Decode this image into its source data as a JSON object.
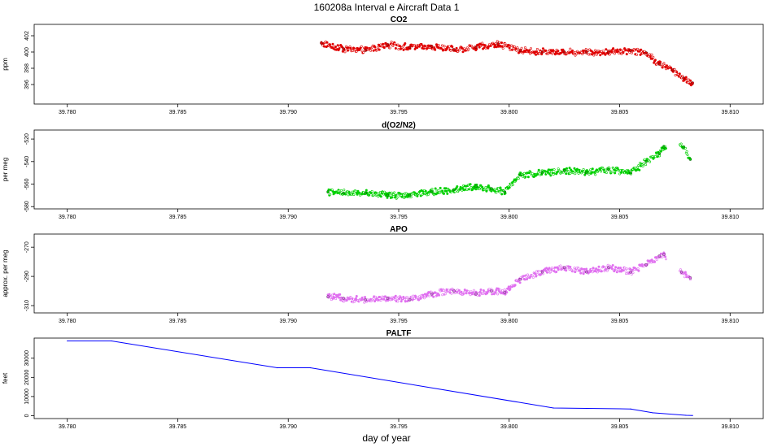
{
  "title": "160208a   Interval e Aircraft Data 1",
  "xlabel": "day of year",
  "chart_data": [
    {
      "type": "scatter",
      "title": "CO2",
      "ylabel": "ppm",
      "color": "#e00000",
      "xlim": [
        39.7785,
        39.8115
      ],
      "ylim": [
        393.6,
        403.4
      ],
      "xticks": [
        39.78,
        39.785,
        39.79,
        39.795,
        39.8,
        39.805,
        39.81
      ],
      "xtick_labels": [
        "39.780",
        "39.785",
        "39.790",
        "39.795",
        "39.800",
        "39.805",
        "39.810"
      ],
      "yticks": [
        396,
        398,
        400,
        402
      ],
      "ytick_labels": [
        "396",
        "398",
        "400",
        "402"
      ],
      "x": [
        39.7915,
        39.7925,
        39.7935,
        39.7945,
        39.7955,
        39.7965,
        39.7975,
        39.7985,
        39.7995,
        39.8005,
        39.8015,
        39.8025,
        39.8035,
        39.8045,
        39.8055,
        39.8062,
        39.8068,
        39.8074,
        39.8079,
        39.8083
      ],
      "y": [
        401.1,
        400.4,
        400.2,
        400.9,
        400.6,
        400.7,
        400.3,
        400.6,
        401.0,
        400.2,
        400.0,
        400.0,
        400.0,
        400.0,
        400.2,
        399.9,
        398.5,
        397.8,
        396.8,
        396.2
      ],
      "series": [
        {
          "name": "CO2",
          "values": [
            401.1,
            400.4,
            400.2,
            400.9,
            400.6,
            400.7,
            400.3,
            400.6,
            401.0,
            400.2,
            400.0,
            400.0,
            400.0,
            400.0,
            400.2,
            399.9,
            398.5,
            397.8,
            396.8,
            396.2
          ]
        }
      ]
    },
    {
      "type": "scatter",
      "title": "d(O2/N2)",
      "ylabel": "per meg",
      "color": "#00d000",
      "xlim": [
        39.7785,
        39.8115
      ],
      "ylim": [
        -582,
        -512
      ],
      "xticks": [
        39.78,
        39.785,
        39.79,
        39.795,
        39.8,
        39.805,
        39.81
      ],
      "xtick_labels": [
        "39.780",
        "39.785",
        "39.790",
        "39.795",
        "39.800",
        "39.805",
        "39.810"
      ],
      "yticks": [
        -580,
        -560,
        -540,
        -520
      ],
      "ytick_labels": [
        "-580",
        "-560",
        "-540",
        "-520"
      ],
      "x": [
        39.7918,
        39.7925,
        39.7935,
        39.7945,
        39.7955,
        39.7965,
        39.7975,
        39.7985,
        39.7992,
        39.7998,
        39.8005,
        39.8015,
        39.8025,
        39.8035,
        39.8045,
        39.8055,
        39.8062,
        39.8068,
        39.807,
        39.8079,
        39.8082
      ],
      "y": [
        -567,
        -568,
        -568,
        -570,
        -570,
        -567,
        -565,
        -562,
        -564,
        -567,
        -552,
        -550,
        -548,
        -550,
        -547,
        -550,
        -540,
        -533,
        -527,
        -527,
        -538
      ],
      "series": [
        {
          "name": "d(O2/N2)",
          "values": [
            -567,
            -568,
            -568,
            -570,
            -570,
            -567,
            -565,
            -562,
            -564,
            -567,
            -552,
            -550,
            -548,
            -550,
            -547,
            -550,
            -540,
            -533,
            -527,
            -527,
            -538
          ]
        }
      ]
    },
    {
      "type": "scatter",
      "title": "APO",
      "ylabel": "approx. per meg",
      "color": "#e070f0",
      "xlim": [
        39.7785,
        39.8115
      ],
      "ylim": [
        -315,
        -261
      ],
      "xticks": [
        39.78,
        39.785,
        39.79,
        39.795,
        39.8,
        39.805,
        39.81
      ],
      "xtick_labels": [
        "39.780",
        "39.785",
        "39.790",
        "39.795",
        "39.800",
        "39.805",
        "39.810"
      ],
      "yticks": [
        -310,
        -290,
        -270
      ],
      "ytick_labels": [
        "-310",
        "-290",
        "-270"
      ],
      "x": [
        39.7918,
        39.7925,
        39.7935,
        39.7945,
        39.7955,
        39.7965,
        39.7975,
        39.7985,
        39.7992,
        39.7998,
        39.8005,
        39.8015,
        39.8025,
        39.8035,
        39.8045,
        39.8055,
        39.8062,
        39.8068,
        39.807,
        39.8078,
        39.8082
      ],
      "y": [
        -304,
        -305,
        -306,
        -305,
        -306,
        -302,
        -300,
        -302,
        -300,
        -301,
        -292,
        -287,
        -284,
        -287,
        -284,
        -287,
        -282,
        -276,
        -275,
        -287,
        -291
      ],
      "series": [
        {
          "name": "APO",
          "values": [
            -304,
            -305,
            -306,
            -305,
            -306,
            -302,
            -300,
            -302,
            -300,
            -301,
            -292,
            -287,
            -284,
            -287,
            -284,
            -287,
            -282,
            -276,
            -275,
            -287,
            -291
          ]
        }
      ]
    },
    {
      "type": "line",
      "title": "PALTF",
      "ylabel": "feet",
      "color": "#0000ff",
      "xlim": [
        39.7785,
        39.8115
      ],
      "ylim": [
        -1500,
        40500
      ],
      "xticks": [
        39.78,
        39.785,
        39.79,
        39.795,
        39.8,
        39.805,
        39.81
      ],
      "xtick_labels": [
        "39.780",
        "39.785",
        "39.790",
        "39.795",
        "39.800",
        "39.805",
        "39.810"
      ],
      "yticks": [
        0,
        10000,
        20000,
        30000
      ],
      "ytick_labels": [
        "0",
        "10000",
        "20000",
        "30000"
      ],
      "x": [
        39.78,
        39.782,
        39.7895,
        39.791,
        39.802,
        39.8055,
        39.8065,
        39.808,
        39.8083
      ],
      "y": [
        39000,
        39000,
        25000,
        25000,
        4000,
        3500,
        1500,
        200,
        100
      ],
      "series": [
        {
          "name": "PALTF",
          "values": [
            39000,
            39000,
            25000,
            25000,
            4000,
            3500,
            1500,
            200,
            100
          ]
        }
      ]
    }
  ]
}
